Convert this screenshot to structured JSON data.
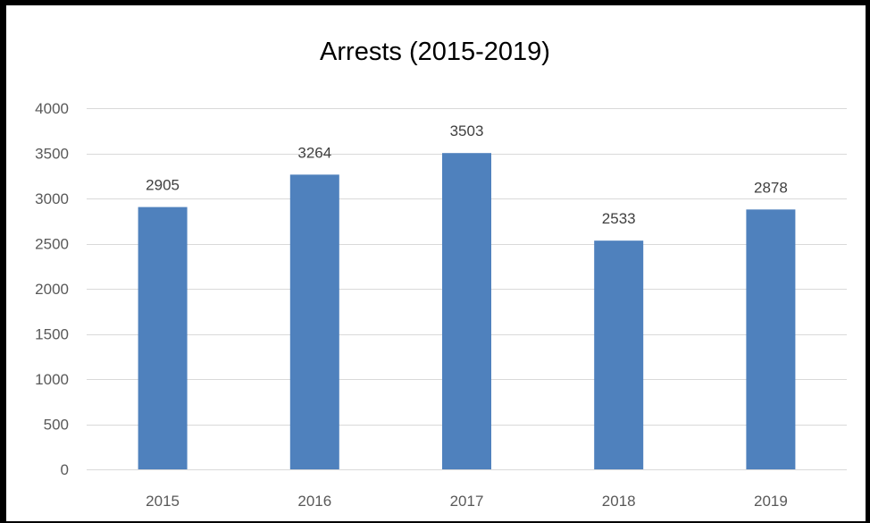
{
  "chart_data": {
    "type": "bar",
    "title": "Arrests (2015-2019)",
    "xlabel": "",
    "ylabel": "",
    "categories": [
      "2015",
      "2016",
      "2017",
      "2018",
      "2019"
    ],
    "values": [
      2905,
      3264,
      3503,
      2533,
      2878
    ],
    "data_labels": [
      "2905",
      "3264",
      "3503",
      "2533",
      "2878"
    ],
    "ylim": [
      0,
      4000
    ],
    "yticks": [
      0,
      500,
      1000,
      1500,
      2000,
      2500,
      3000,
      3500,
      4000
    ],
    "ytick_labels": [
      "0",
      "500",
      "1000",
      "1500",
      "2000",
      "2500",
      "3000",
      "3500",
      "4000"
    ],
    "grid": true,
    "legend": "none",
    "bar_color": "#4F81BD",
    "gridline_color": "#D9D9D9"
  }
}
